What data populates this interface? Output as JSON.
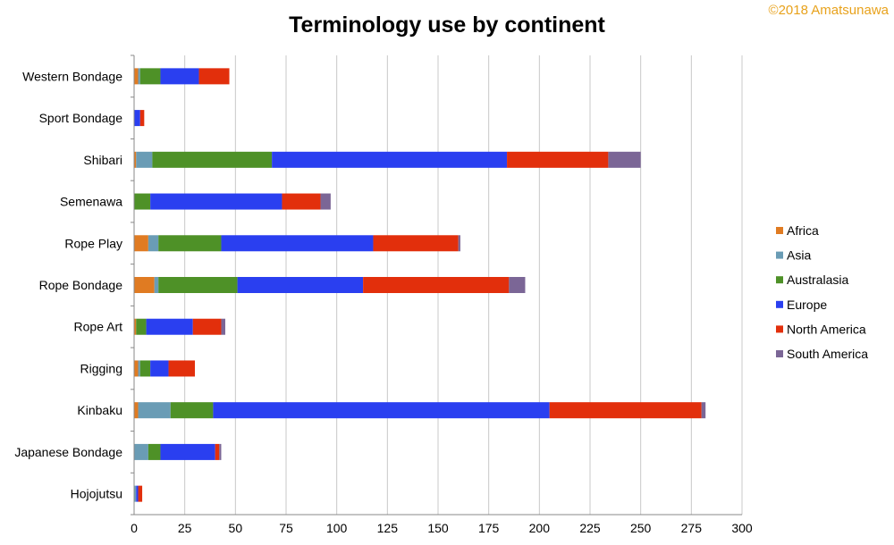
{
  "chart_data": {
    "type": "bar",
    "orientation": "horizontal",
    "stacked": true,
    "title": "Terminology use by continent",
    "copyright": "©2018 Amatsunawa",
    "categories": [
      "Western Bondage",
      "Sport Bondage",
      "Shibari",
      "Semenawa",
      "Rope Play",
      "Rope Bondage",
      "Rope Art",
      "Rigging",
      "Kinbaku",
      "Japanese Bondage",
      "Hojojutsu"
    ],
    "series": [
      {
        "name": "Africa",
        "color": "#e07b22",
        "values": [
          2,
          0,
          1,
          0,
          7,
          10,
          1,
          2,
          2,
          0,
          0
        ]
      },
      {
        "name": "Asia",
        "color": "#6a9cb5",
        "values": [
          1,
          0,
          8,
          0,
          5,
          2,
          0,
          1,
          16,
          7,
          1
        ]
      },
      {
        "name": "Australasia",
        "color": "#4e9127",
        "values": [
          10,
          0,
          59,
          8,
          31,
          39,
          5,
          5,
          21,
          6,
          0
        ]
      },
      {
        "name": "Europe",
        "color": "#2a3ff0",
        "values": [
          19,
          3,
          116,
          65,
          75,
          62,
          23,
          9,
          166,
          27,
          1
        ]
      },
      {
        "name": "North America",
        "color": "#e22f0c",
        "values": [
          15,
          2,
          50,
          19,
          42,
          72,
          14,
          13,
          75,
          2,
          2
        ]
      },
      {
        "name": "South America",
        "color": "#7b6696",
        "values": [
          0,
          0,
          16,
          5,
          1,
          8,
          2,
          0,
          2,
          1,
          0
        ]
      }
    ],
    "xlim": [
      0,
      300
    ],
    "xticks": [
      0,
      25,
      50,
      75,
      100,
      125,
      150,
      175,
      200,
      225,
      250,
      275,
      300
    ],
    "grid": true,
    "legend_position": "right"
  }
}
